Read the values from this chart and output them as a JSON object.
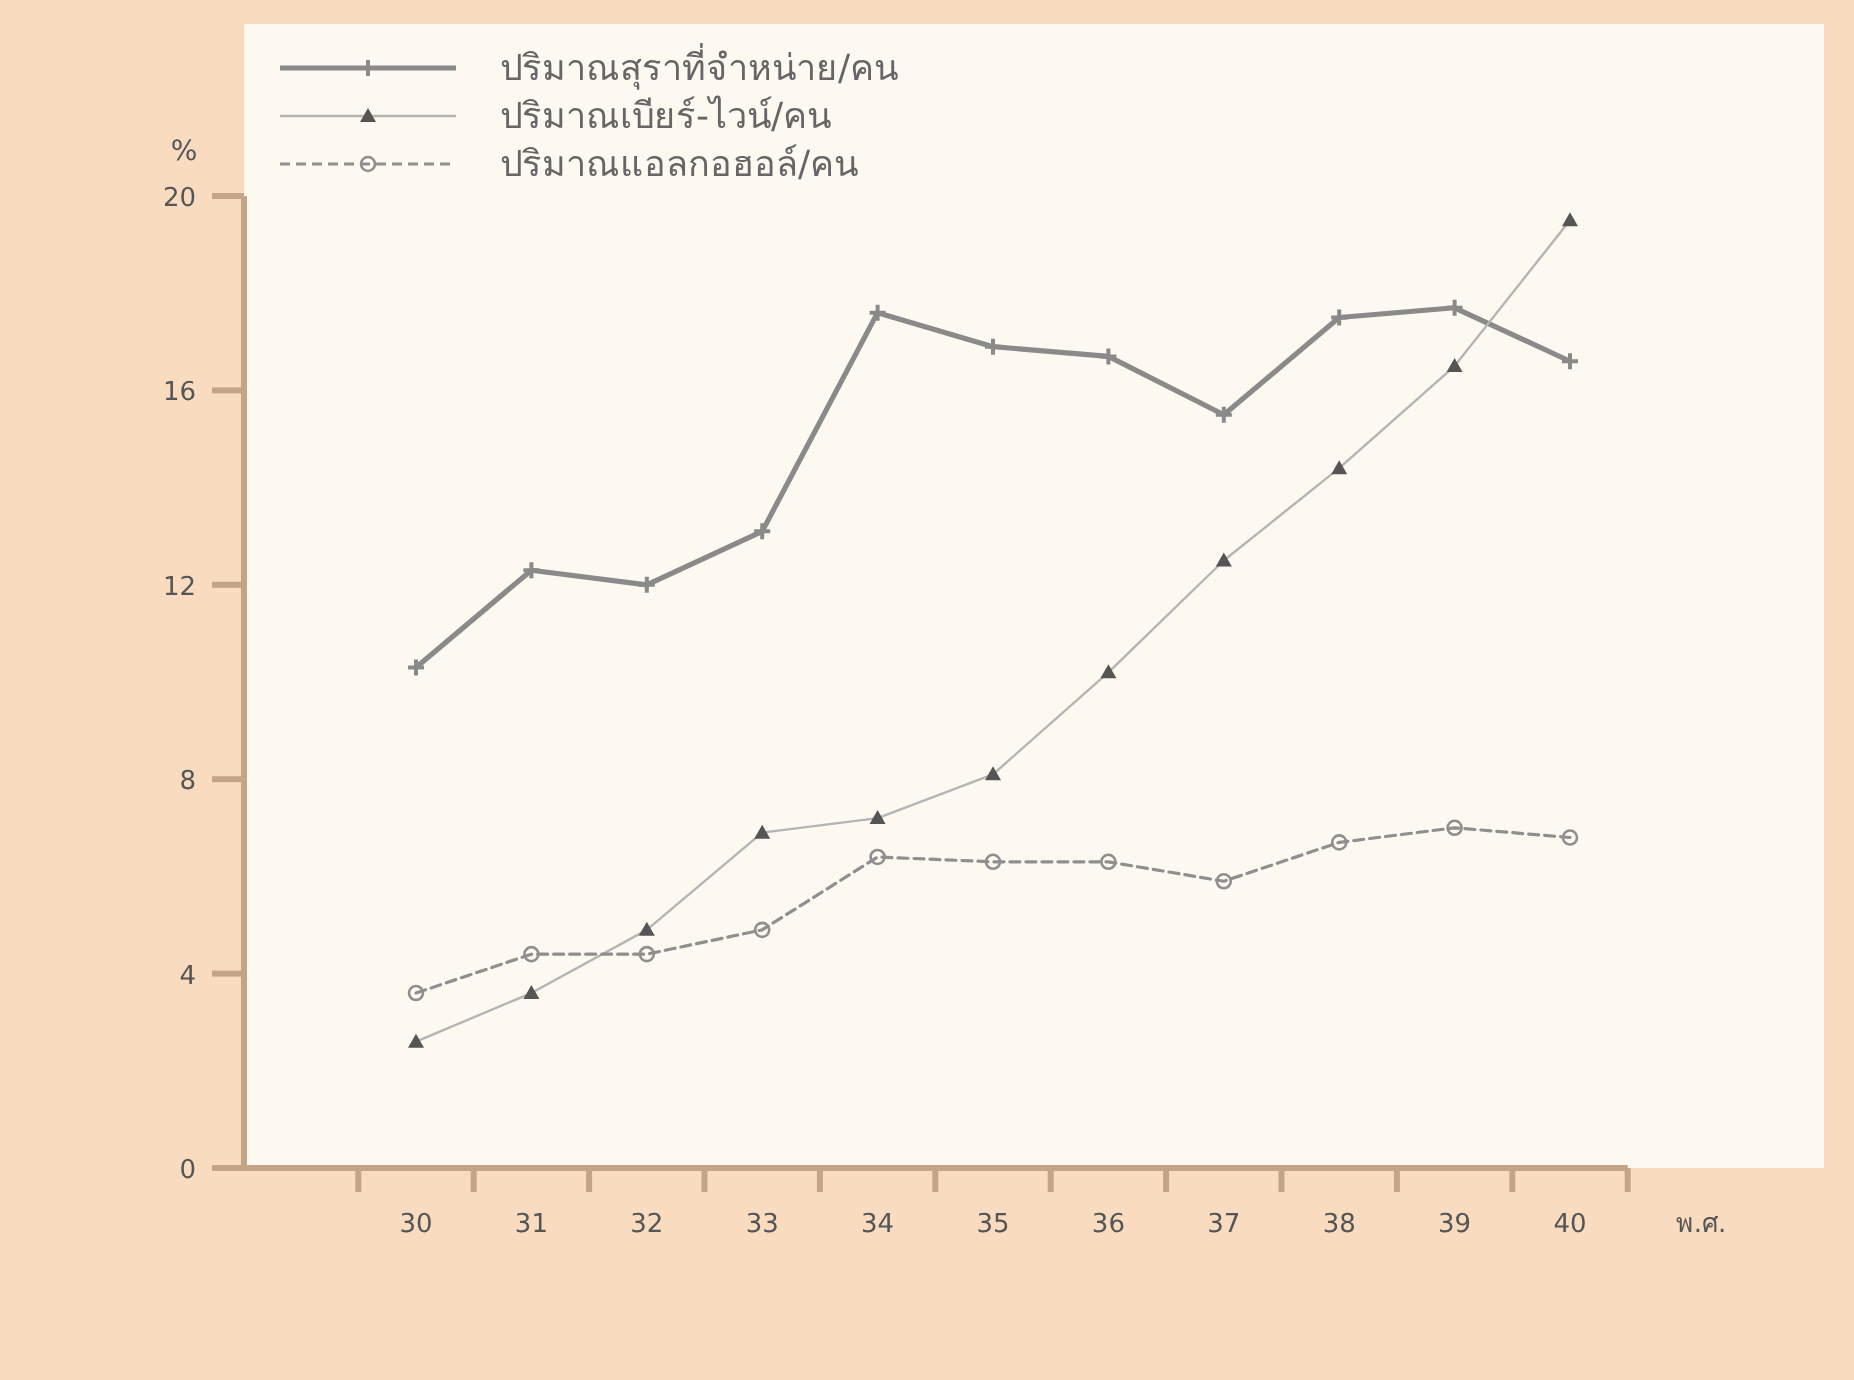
{
  "chart_data": {
    "type": "line",
    "ylabel": "%",
    "xlabel": "พ.ศ.",
    "categories": [
      "30",
      "31",
      "32",
      "33",
      "34",
      "35",
      "36",
      "37",
      "38",
      "39",
      "40"
    ],
    "ylim": [
      0,
      20
    ],
    "yticks": [
      0,
      4,
      8,
      12,
      16,
      20
    ],
    "grid": false,
    "legend": "top left",
    "series": [
      {
        "name": "ปริมาณสุราที่จำหน่าย/คน",
        "color": "#8a8a8a",
        "marker": "cross",
        "line_style": "solid",
        "values": [
          10.3,
          12.3,
          12.0,
          13.1,
          17.6,
          16.9,
          16.7,
          15.5,
          17.5,
          17.7,
          16.6
        ]
      },
      {
        "name": "ปริมาณเบียร์-ไวน์/คน",
        "color": "#b4b4b4",
        "marker": "triangle",
        "line_style": "solid",
        "values": [
          2.6,
          3.6,
          4.9,
          6.9,
          7.2,
          8.1,
          10.2,
          12.5,
          14.4,
          16.5,
          19.5
        ]
      },
      {
        "name": "ปริมาณแอลกอฮอล์/คน",
        "color": "#8f8f8f",
        "marker": "circle",
        "line_style": "dashed",
        "values": [
          3.6,
          4.4,
          4.4,
          4.9,
          6.4,
          6.3,
          6.3,
          5.9,
          6.7,
          7.0,
          6.8
        ]
      }
    ]
  }
}
